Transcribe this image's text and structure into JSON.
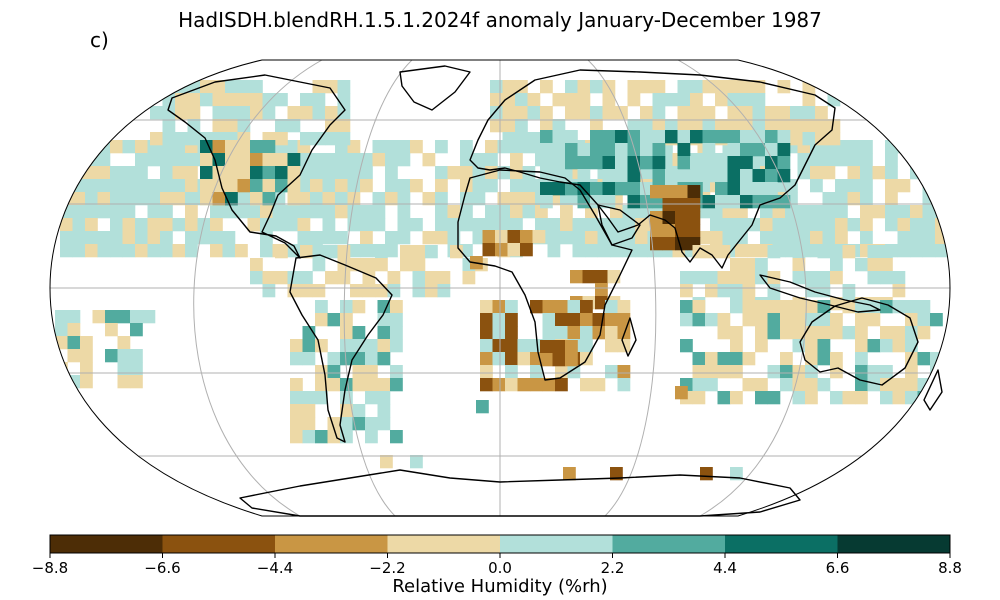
{
  "title": "HadISDH.blendRH.1.5.1.2024f anomaly January-December 1987",
  "panel_label": "c)",
  "colorbar": {
    "label": "Relative Humidity (%rh)",
    "ticks": [
      "−8.8",
      "−6.6",
      "−4.4",
      "−2.2",
      "0.0",
      "2.2",
      "4.4",
      "6.6",
      "8.8"
    ],
    "colors": [
      "#4d2d06",
      "#8b520f",
      "#c99644",
      "#edd9a6",
      "#b2e0da",
      "#52ab9f",
      "#0b6f64",
      "#063a32"
    ]
  },
  "chart_data": {
    "type": "heatmap",
    "projection": "robinson",
    "variable": "Relative Humidity anomaly",
    "units": "%rh",
    "period": "January-December 1987",
    "color_range": [
      -8.8,
      8.8
    ],
    "grid": true,
    "note": "Gridded anomaly boxes; white = no data",
    "color_bins": [
      -8.8,
      -6.6,
      -4.4,
      -2.2,
      0.0,
      2.2,
      4.4,
      6.6,
      8.8
    ]
  }
}
